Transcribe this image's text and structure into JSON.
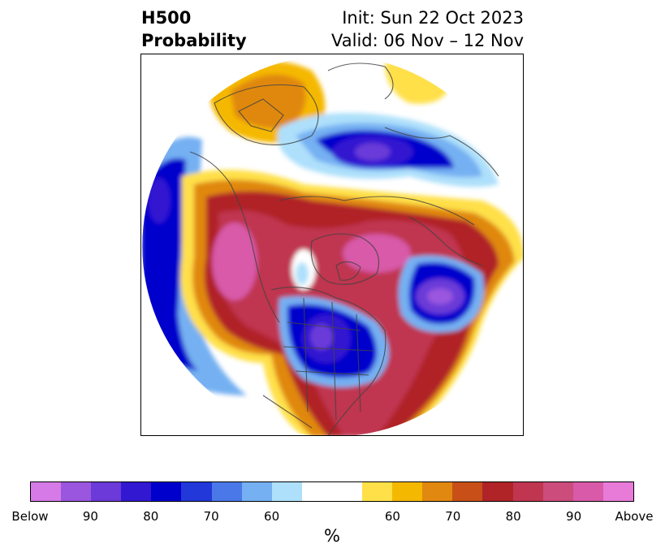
{
  "title": {
    "left_line1": "H500",
    "left_line2": "Probability",
    "right_line1": "Init: Sun 22 Oct 2023",
    "right_line2": "Valid: 06 Nov – 12 Nov"
  },
  "map": {
    "projection": "north-polar-stereographic",
    "colors": {
      "below_strong": "#5a2fd6",
      "below_mid": "#0a0ad0",
      "below_light": "#6aa6f0",
      "below_faint": "#aee0fb",
      "above_faint": "#ffe040",
      "above_light": "#f5b800",
      "above_mid": "#c84a1a",
      "above_strong": "#c03050",
      "above_max": "#d85aa8",
      "coastline": "#444444"
    }
  },
  "colorbar": {
    "colors": [
      "#d67ae8",
      "#9a56de",
      "#6b3ad8",
      "#3218d0",
      "#0000cc",
      "#2238d8",
      "#4a78e8",
      "#74b0f2",
      "#aee0fb",
      "#ffffff",
      "#ffffff",
      "#ffe048",
      "#f5b800",
      "#e08810",
      "#c85018",
      "#b02428",
      "#c03650",
      "#cc4c7c",
      "#d85aa8",
      "#e87ad8"
    ],
    "labels": [
      "Below",
      "90",
      "80",
      "70",
      "60",
      "60",
      "70",
      "80",
      "90",
      "Above"
    ],
    "unit": "%"
  }
}
